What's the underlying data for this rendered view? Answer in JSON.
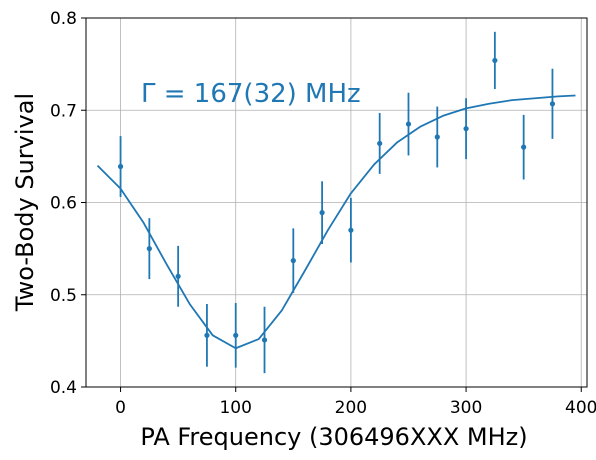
{
  "colors": {
    "series": "#1f77b4",
    "grid": "#b0b0b0",
    "axes": "#000000"
  },
  "chart_data": {
    "type": "scatter",
    "xlabel": "PA Frequency (306496XXX MHz)",
    "ylabel": "Two-Body Survival",
    "xlim": [
      -30,
      405
    ],
    "ylim": [
      0.4,
      0.8
    ],
    "xticks": [
      0,
      100,
      200,
      300,
      400
    ],
    "yticks": [
      0.4,
      0.5,
      0.6,
      0.7,
      0.8
    ],
    "xtick_labels": [
      "0",
      "100",
      "200",
      "300",
      "400"
    ],
    "ytick_labels": [
      "0.4",
      "0.5",
      "0.6",
      "0.7",
      "0.8"
    ],
    "grid": true,
    "annotation": "Γ = 167(32) MHz",
    "series": [
      {
        "kind": "errorbar",
        "x": [
          0,
          25,
          50,
          75,
          100,
          125,
          150,
          175,
          200,
          225,
          250,
          275,
          300,
          325,
          350,
          375
        ],
        "y": [
          0.639,
          0.55,
          0.52,
          0.456,
          0.456,
          0.451,
          0.537,
          0.589,
          0.57,
          0.664,
          0.685,
          0.671,
          0.68,
          0.754,
          0.66,
          0.707
        ],
        "yerr": [
          0.033,
          0.033,
          0.033,
          0.034,
          0.035,
          0.036,
          0.035,
          0.034,
          0.035,
          0.033,
          0.034,
          0.033,
          0.033,
          0.031,
          0.035,
          0.038
        ]
      },
      {
        "kind": "fit",
        "x": [
          -20,
          0,
          20,
          40,
          60,
          80,
          100,
          120,
          140,
          160,
          180,
          200,
          220,
          240,
          260,
          280,
          300,
          320,
          340,
          360,
          380,
          395
        ],
        "y": [
          0.64,
          0.615,
          0.578,
          0.533,
          0.49,
          0.456,
          0.442,
          0.452,
          0.483,
          0.526,
          0.57,
          0.61,
          0.641,
          0.665,
          0.682,
          0.694,
          0.702,
          0.707,
          0.711,
          0.713,
          0.715,
          0.716
        ]
      }
    ]
  }
}
